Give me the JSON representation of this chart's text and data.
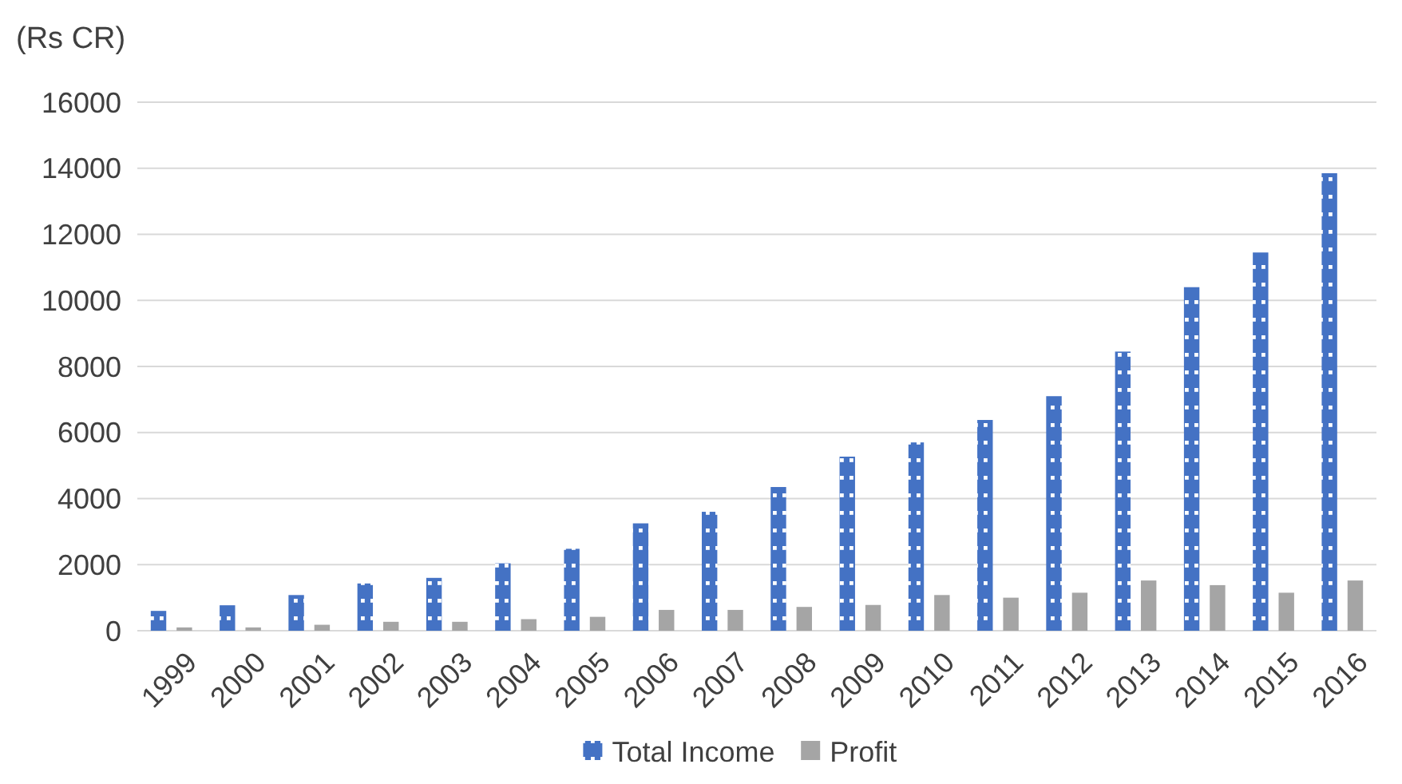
{
  "chart_data": {
    "type": "bar",
    "ylabel": "(Rs CR)",
    "categories": [
      "1999",
      "2000",
      "2001",
      "2002",
      "2003",
      "2004",
      "2005",
      "2006",
      "2007",
      "2008",
      "2009",
      "2010",
      "2011",
      "2012",
      "2013",
      "2014",
      "2015",
      "2016"
    ],
    "series": [
      {
        "name": "Total Income",
        "color": "#4472c4",
        "values": [
          600,
          770,
          1080,
          1430,
          1600,
          2040,
          2480,
          3250,
          3600,
          4350,
          5270,
          5700,
          6380,
          7100,
          8450,
          10400,
          11450,
          13850
        ]
      },
      {
        "name": "Profit",
        "color": "#a5a5a5",
        "values": [
          100,
          100,
          180,
          270,
          270,
          350,
          420,
          630,
          630,
          720,
          780,
          1080,
          1000,
          1150,
          1520,
          1380,
          1150,
          1520
        ]
      }
    ],
    "ylim": [
      0,
      16000
    ],
    "yticks": [
      0,
      2000,
      4000,
      6000,
      8000,
      10000,
      12000,
      14000,
      16000
    ],
    "grid": "y",
    "legend": "bottom"
  }
}
